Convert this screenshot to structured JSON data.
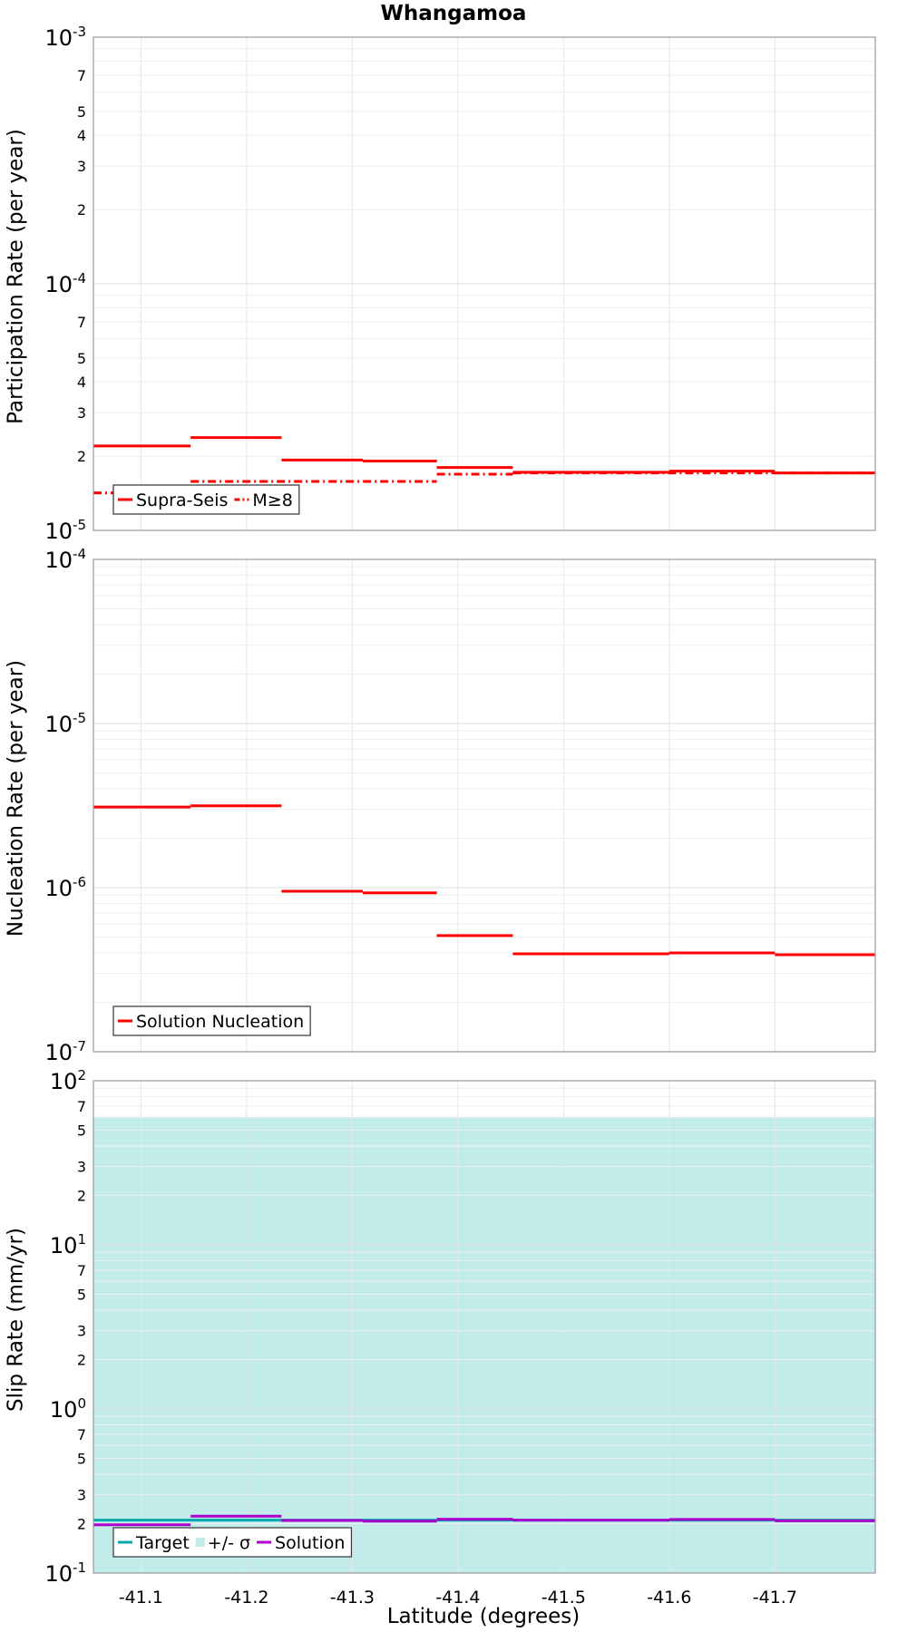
{
  "title": "Whangamoa",
  "xlabel": "Latitude (degrees)",
  "x_ticks": [
    -41.1,
    -41.2,
    -41.3,
    -41.4,
    -41.5,
    -41.6,
    -41.7
  ],
  "xlim": [
    -41.055,
    -41.795
  ],
  "chart_data": [
    {
      "type": "line",
      "ylabel": "Participation Rate (per year)",
      "yscale": "log",
      "ylim": [
        1e-05,
        0.001
      ],
      "grid": true,
      "legend_position": "bottom-left",
      "series": [
        {
          "name": "Supra-Seis",
          "style": "solid",
          "color": "#ff0000",
          "steps": [
            {
              "x0": -41.055,
              "x1": -41.147,
              "y": 2.2e-05
            },
            {
              "x0": -41.147,
              "x1": -41.233,
              "y": 2.38e-05
            },
            {
              "x0": -41.233,
              "x1": -41.31,
              "y": 1.93e-05
            },
            {
              "x0": -41.31,
              "x1": -41.38,
              "y": 1.91e-05
            },
            {
              "x0": -41.38,
              "x1": -41.452,
              "y": 1.8e-05
            },
            {
              "x0": -41.452,
              "x1": -41.522,
              "y": 1.72e-05
            },
            {
              "x0": -41.522,
              "x1": -41.6,
              "y": 1.72e-05
            },
            {
              "x0": -41.6,
              "x1": -41.7,
              "y": 1.74e-05
            },
            {
              "x0": -41.7,
              "x1": -41.795,
              "y": 1.71e-05
            }
          ]
        },
        {
          "name": "M≥8",
          "style": "dashdot",
          "color": "#ff0000",
          "steps": [
            {
              "x0": -41.055,
              "x1": -41.147,
              "y": 1.42e-05
            },
            {
              "x0": -41.147,
              "x1": -41.38,
              "y": 1.58e-05
            },
            {
              "x0": -41.38,
              "x1": -41.452,
              "y": 1.69e-05
            },
            {
              "x0": -41.452,
              "x1": -41.795,
              "y": 1.71e-05
            }
          ]
        }
      ]
    },
    {
      "type": "line",
      "ylabel": "Nucleation Rate (per year)",
      "yscale": "log",
      "ylim": [
        1e-07,
        0.0001
      ],
      "grid": true,
      "legend_position": "bottom-left",
      "series": [
        {
          "name": "Solution Nucleation",
          "style": "solid",
          "color": "#ff0000",
          "steps": [
            {
              "x0": -41.055,
              "x1": -41.147,
              "y": 3.1e-06
            },
            {
              "x0": -41.147,
              "x1": -41.233,
              "y": 3.15e-06
            },
            {
              "x0": -41.233,
              "x1": -41.31,
              "y": 9.5e-07
            },
            {
              "x0": -41.31,
              "x1": -41.38,
              "y": 9.3e-07
            },
            {
              "x0": -41.38,
              "x1": -41.452,
              "y": 5.1e-07
            },
            {
              "x0": -41.452,
              "x1": -41.522,
              "y": 3.95e-07
            },
            {
              "x0": -41.522,
              "x1": -41.6,
              "y": 3.95e-07
            },
            {
              "x0": -41.6,
              "x1": -41.7,
              "y": 4e-07
            },
            {
              "x0": -41.7,
              "x1": -41.795,
              "y": 3.9e-07
            }
          ]
        }
      ]
    },
    {
      "type": "area",
      "ylabel": "Slip Rate (mm/yr)",
      "yscale": "log",
      "ylim": [
        0.1,
        100
      ],
      "grid": true,
      "legend_position": "bottom-left",
      "band": {
        "name": "+/- σ",
        "color": "#c2ecea",
        "y0": 0.1,
        "y1": 60
      },
      "series": [
        {
          "name": "Target",
          "style": "solid",
          "color": "#00aaaa",
          "steps": [
            {
              "x0": -41.055,
              "x1": -41.795,
              "y": 0.21
            }
          ]
        },
        {
          "name": "Solution",
          "style": "solid",
          "color": "#aa00cc",
          "steps": [
            {
              "x0": -41.055,
              "x1": -41.147,
              "y": 0.197
            },
            {
              "x0": -41.147,
              "x1": -41.233,
              "y": 0.222
            },
            {
              "x0": -41.233,
              "x1": -41.31,
              "y": 0.209
            },
            {
              "x0": -41.31,
              "x1": -41.38,
              "y": 0.207
            },
            {
              "x0": -41.38,
              "x1": -41.452,
              "y": 0.213
            },
            {
              "x0": -41.452,
              "x1": -41.522,
              "y": 0.21
            },
            {
              "x0": -41.522,
              "x1": -41.6,
              "y": 0.21
            },
            {
              "x0": -41.6,
              "x1": -41.7,
              "y": 0.212
            },
            {
              "x0": -41.7,
              "x1": -41.795,
              "y": 0.208
            }
          ]
        }
      ]
    }
  ]
}
